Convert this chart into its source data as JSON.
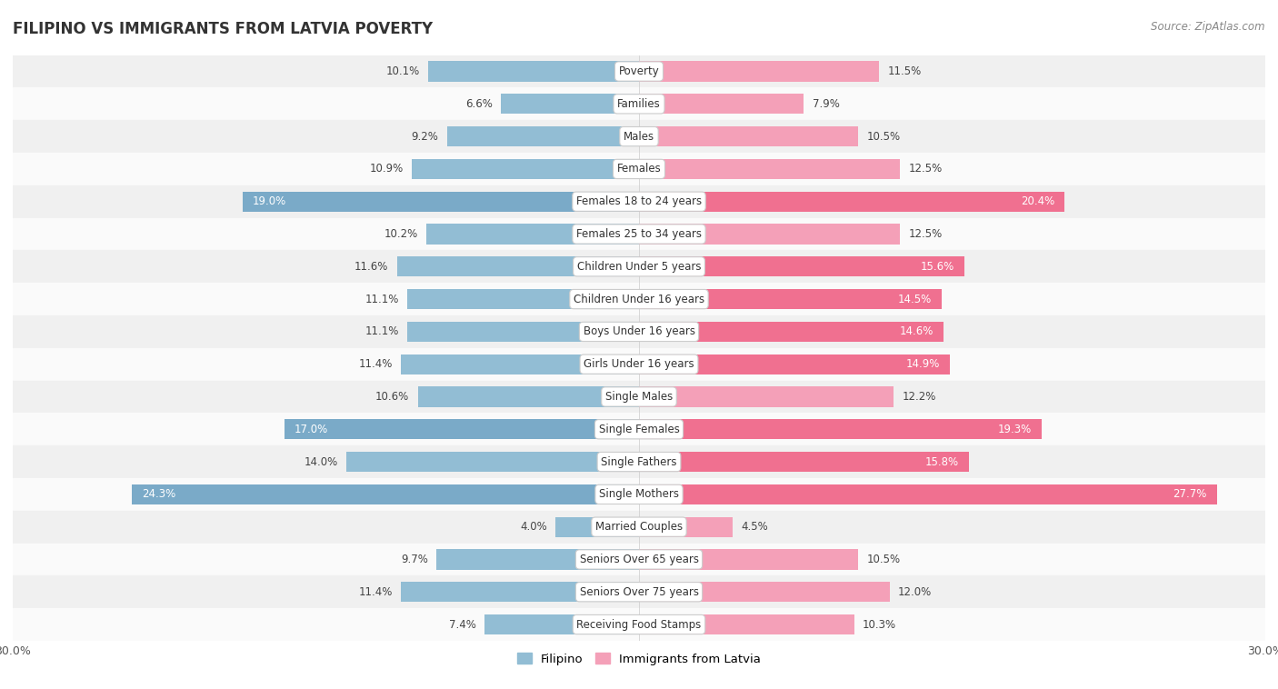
{
  "title": "FILIPINO VS IMMIGRANTS FROM LATVIA POVERTY",
  "source": "Source: ZipAtlas.com",
  "categories": [
    "Poverty",
    "Families",
    "Males",
    "Females",
    "Females 18 to 24 years",
    "Females 25 to 34 years",
    "Children Under 5 years",
    "Children Under 16 years",
    "Boys Under 16 years",
    "Girls Under 16 years",
    "Single Males",
    "Single Females",
    "Single Fathers",
    "Single Mothers",
    "Married Couples",
    "Seniors Over 65 years",
    "Seniors Over 75 years",
    "Receiving Food Stamps"
  ],
  "filipino": [
    10.1,
    6.6,
    9.2,
    10.9,
    19.0,
    10.2,
    11.6,
    11.1,
    11.1,
    11.4,
    10.6,
    17.0,
    14.0,
    24.3,
    4.0,
    9.7,
    11.4,
    7.4
  ],
  "latvia": [
    11.5,
    7.9,
    10.5,
    12.5,
    20.4,
    12.5,
    15.6,
    14.5,
    14.6,
    14.9,
    12.2,
    19.3,
    15.8,
    27.7,
    4.5,
    10.5,
    12.0,
    10.3
  ],
  "max_val": 30.0,
  "filipino_color": "#92bdd4",
  "latvia_color": "#f4a0b8",
  "highlight_filipino_color": "#7aaac8",
  "highlight_latvia_color": "#f07090",
  "row_bg_odd": "#f0f0f0",
  "row_bg_even": "#fafafa",
  "bar_height": 0.62,
  "figsize": [
    14.06,
    7.58
  ],
  "dpi": 100,
  "white_threshold": 14.5
}
